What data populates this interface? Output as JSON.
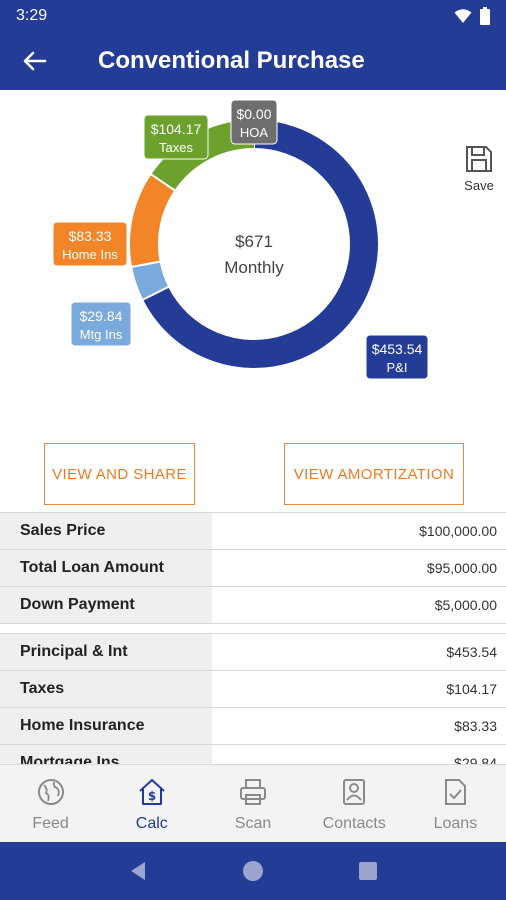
{
  "status": {
    "time": "3:29"
  },
  "header": {
    "title": "Conventional Purchase"
  },
  "save": {
    "label": "Save"
  },
  "chart_data": {
    "type": "pie",
    "center": {
      "value": "$671",
      "label": "Monthly"
    },
    "slices": [
      {
        "name": "P&I",
        "value": 453.54,
        "label": "$453.54",
        "color": "#243c96"
      },
      {
        "name": "Mtg Ins",
        "value": 29.84,
        "label": "$29.84",
        "color": "#7aaadc"
      },
      {
        "name": "Home Ins",
        "value": 83.33,
        "label": "$83.33",
        "color": "#f28528"
      },
      {
        "name": "Taxes",
        "value": 104.17,
        "label": "$104.17",
        "color": "#6ca12e"
      },
      {
        "name": "HOA",
        "value": 0,
        "label": "$0.00",
        "color": "#6e6e6e"
      }
    ]
  },
  "buttons": {
    "share": "VIEW AND SHARE",
    "amortization": "VIEW AMORTIZATION"
  },
  "loan_table": [
    {
      "label": "Sales Price",
      "value": "$100,000.00"
    },
    {
      "label": "Total Loan Amount",
      "value": "$95,000.00"
    },
    {
      "label": "Down Payment",
      "value": "$5,000.00"
    }
  ],
  "payment_table": [
    {
      "label": "Principal & Int",
      "value": "$453.54"
    },
    {
      "label": "Taxes",
      "value": "$104.17"
    },
    {
      "label": "Home Insurance",
      "value": "$83.33"
    },
    {
      "label": "Mortgage Ins",
      "value": "$29.84"
    }
  ],
  "nav": [
    {
      "label": "Feed",
      "icon": "globe-icon"
    },
    {
      "label": "Calc",
      "icon": "house-dollar-icon",
      "active": true
    },
    {
      "label": "Scan",
      "icon": "printer-icon"
    },
    {
      "label": "Contacts",
      "icon": "contacts-icon"
    },
    {
      "label": "Loans",
      "icon": "document-check-icon"
    }
  ]
}
